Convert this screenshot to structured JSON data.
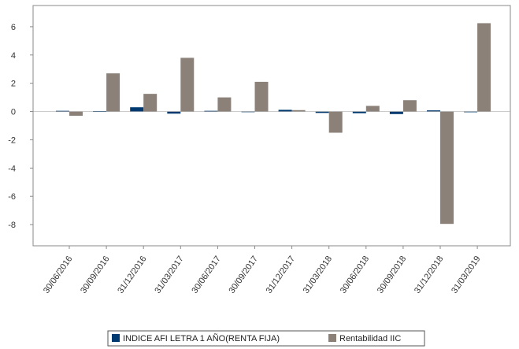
{
  "chart_data": {
    "type": "bar",
    "categories": [
      "30/06/2016",
      "30/09/2016",
      "31/12/2016",
      "31/03/2017",
      "30/06/2017",
      "30/09/2017",
      "31/12/2017",
      "31/03/2018",
      "30/06/2018",
      "30/09/2018",
      "31/12/2018",
      "31/03/2019"
    ],
    "series": [
      {
        "name": "INDICE AFI LETRA 1 AÑO(RENTA FIJA)",
        "color": "#003a70",
        "values": [
          0.05,
          0.03,
          0.3,
          -0.15,
          0.05,
          0.0,
          0.12,
          -0.1,
          -0.12,
          -0.18,
          0.08,
          -0.05
        ]
      },
      {
        "name": "Rentabilidad IIC",
        "color": "#8c8178",
        "values": [
          -0.3,
          2.7,
          1.25,
          3.8,
          1.0,
          2.1,
          0.1,
          -1.5,
          0.4,
          0.8,
          -7.95,
          6.25
        ]
      }
    ],
    "ylim": [
      -9.5,
      7.5
    ],
    "yticks": [
      6,
      4,
      2,
      0,
      -2,
      -4,
      -6,
      -8
    ],
    "title": "",
    "xlabel": "",
    "ylabel": "",
    "grid": false,
    "legend_position": "bottom"
  }
}
